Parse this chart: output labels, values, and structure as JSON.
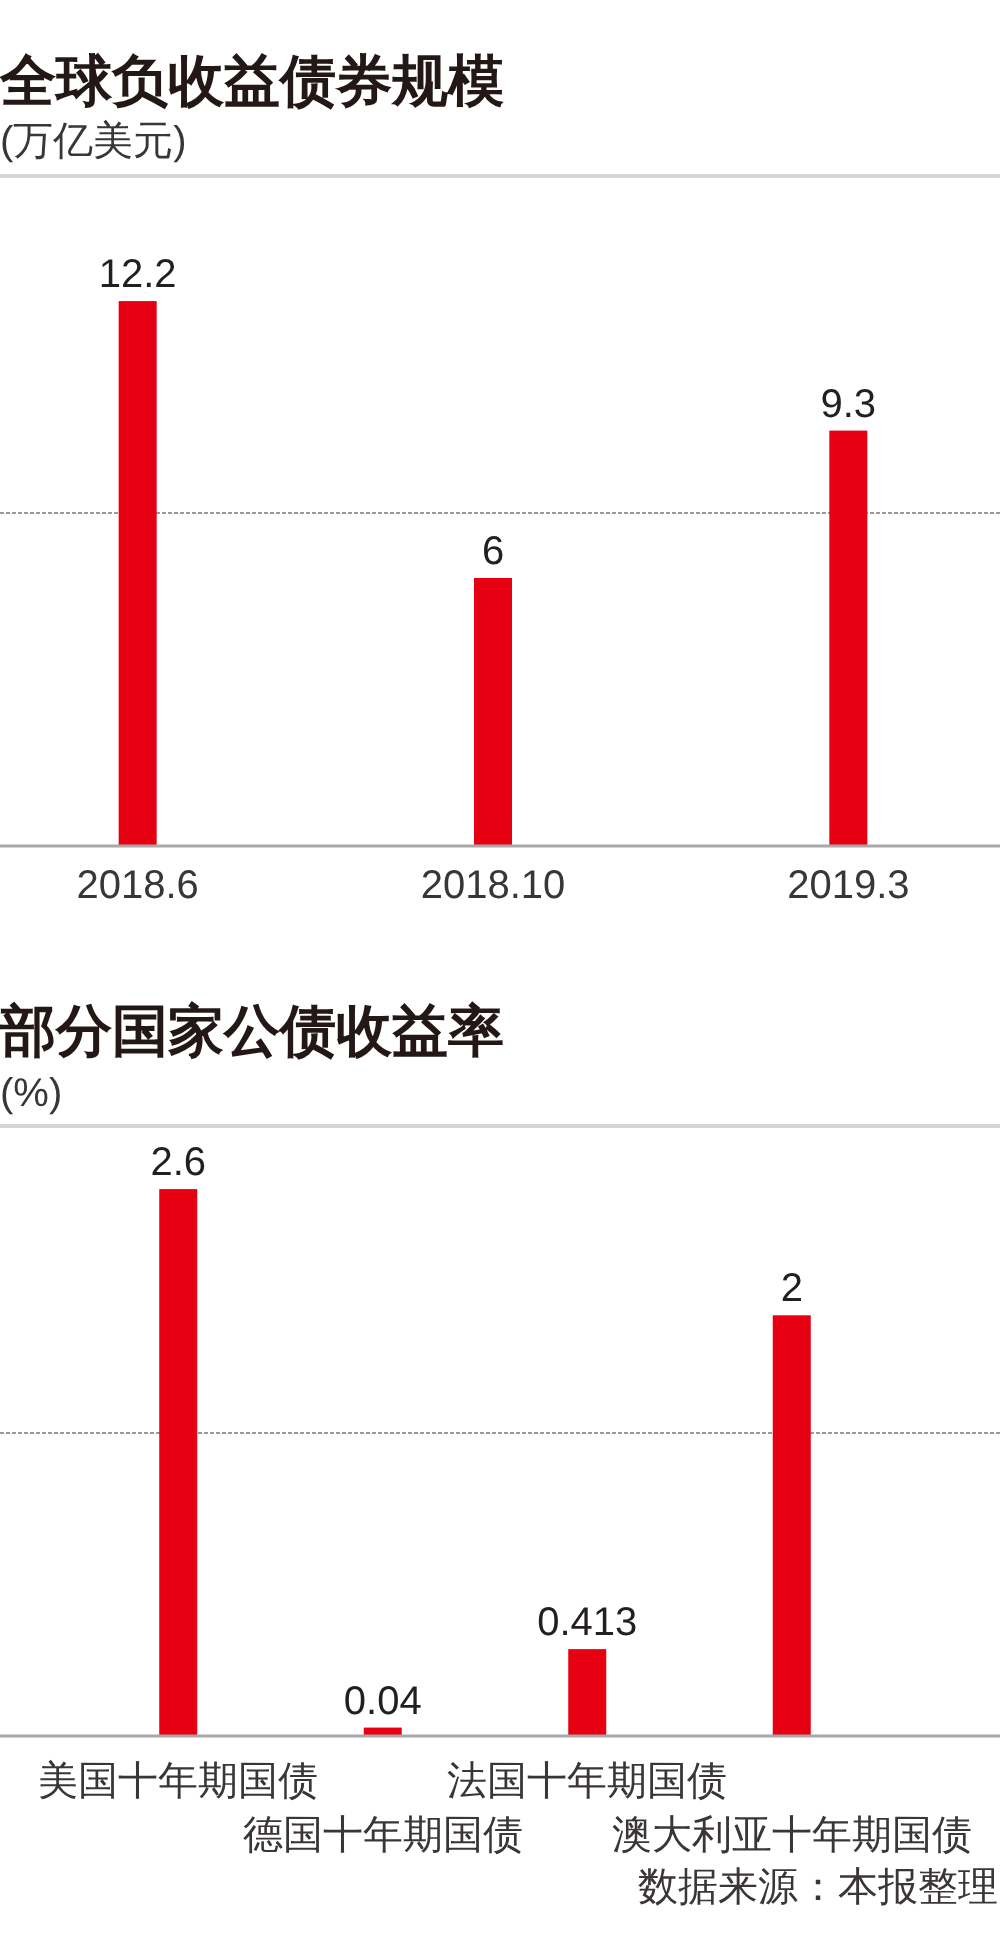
{
  "chart_data": [
    {
      "type": "bar",
      "title": "全球负收益债券规模",
      "subtitle": "(万亿美元)",
      "categories": [
        "2018.6",
        "2018.10",
        "2019.3"
      ],
      "values": [
        12.2,
        6,
        9.3
      ],
      "color": "#e60012",
      "data_labels": true,
      "ylim": [
        0,
        15
      ],
      "ref_lines": [
        {
          "axis": "y",
          "value": 7.5,
          "color": "#9a9a9a",
          "line_style": "dotted"
        }
      ],
      "tick_labels": "x"
    },
    {
      "type": "bar",
      "title": "部分国家公债收益率",
      "subtitle": "(%)",
      "categories": [
        "美国十年期国债",
        "德国十年期国债",
        "法国十年期国债",
        "澳大利亚十年期国债"
      ],
      "values": [
        2.6,
        0.04,
        0.413,
        2
      ],
      "color": "#e60012",
      "data_labels": true,
      "ylim": [
        0,
        2.9
      ],
      "ref_lines": [
        {
          "axis": "y",
          "value": 1.45,
          "color": "#9a9a9a",
          "line_style": "dotted"
        }
      ],
      "tick_labels": "x",
      "annotations": [
        "数据来源：本报整理"
      ]
    }
  ]
}
